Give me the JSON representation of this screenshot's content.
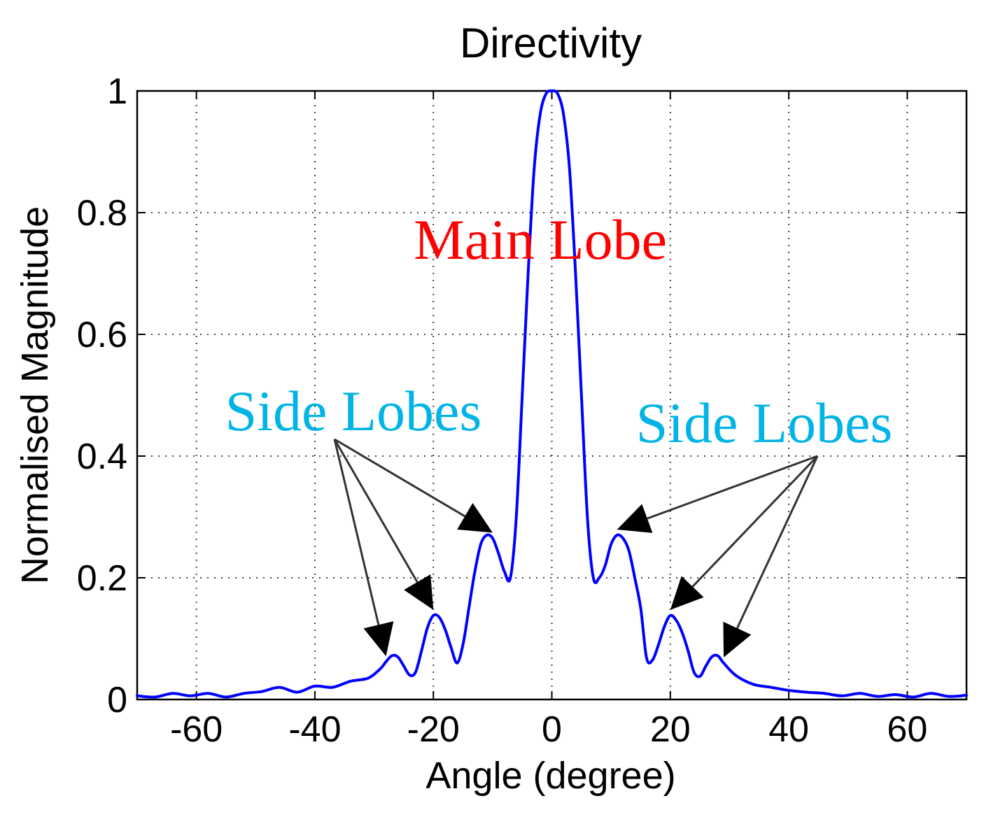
{
  "chart_data": {
    "type": "line",
    "title": "Directivity",
    "xlabel": "Angle (degree)",
    "ylabel": "Normalised Magnitude",
    "xlim": [
      -70,
      70
    ],
    "ylim": [
      0,
      1
    ],
    "xticks": [
      -60,
      -40,
      -20,
      0,
      20,
      40,
      60
    ],
    "xtick_labels": [
      "-60",
      "-40",
      "-20",
      "0",
      "20",
      "40",
      "60"
    ],
    "yticks": [
      0,
      0.2,
      0.4,
      0.6,
      0.8,
      1
    ],
    "ytick_labels": [
      "0",
      "0.2",
      "0.4",
      "0.6",
      "0.8",
      "1"
    ],
    "grid": true,
    "legend": "none",
    "series": [
      {
        "color": "#0000ff",
        "x": [
          -70,
          -67,
          -64,
          -61,
          -58,
          -55,
          -52,
          -49,
          -46,
          -43,
          -40,
          -37,
          -34,
          -31,
          -29,
          -28,
          -27,
          -26,
          -25,
          -24,
          -23,
          -22,
          -21,
          -20,
          -19,
          -18,
          -17,
          -16,
          -15,
          -14,
          -13,
          -12,
          -11,
          -10,
          -9,
          -8,
          -7,
          -6,
          -5,
          -4,
          -3,
          -2,
          -1,
          0,
          1,
          2,
          3,
          4,
          5,
          6,
          7,
          8,
          9,
          10,
          11,
          12,
          13,
          14,
          15,
          16,
          17,
          18,
          19,
          20,
          21,
          22,
          23,
          24,
          25,
          26,
          27,
          28,
          29,
          31,
          34,
          37,
          40,
          43,
          46,
          49,
          52,
          55,
          58,
          61,
          64,
          67,
          70
        ],
        "y": [
          0.006,
          0.004,
          0.01,
          0.006,
          0.01,
          0.004,
          0.01,
          0.013,
          0.02,
          0.012,
          0.022,
          0.02,
          0.03,
          0.035,
          0.05,
          0.062,
          0.072,
          0.07,
          0.055,
          0.04,
          0.045,
          0.08,
          0.118,
          0.138,
          0.135,
          0.115,
          0.085,
          0.06,
          0.09,
          0.15,
          0.21,
          0.255,
          0.27,
          0.265,
          0.24,
          0.21,
          0.2,
          0.3,
          0.5,
          0.7,
          0.87,
          0.96,
          0.995,
          1.0,
          0.995,
          0.96,
          0.87,
          0.7,
          0.5,
          0.3,
          0.2,
          0.2,
          0.22,
          0.255,
          0.27,
          0.265,
          0.245,
          0.2,
          0.15,
          0.068,
          0.065,
          0.09,
          0.12,
          0.138,
          0.13,
          0.11,
          0.08,
          0.045,
          0.038,
          0.055,
          0.07,
          0.072,
          0.06,
          0.04,
          0.025,
          0.02,
          0.015,
          0.012,
          0.01,
          0.006,
          0.01,
          0.005,
          0.008,
          0.004,
          0.01,
          0.005,
          0.007
        ]
      }
    ],
    "annotations": [
      {
        "text": "Main Lobe",
        "color": "#ff0000"
      },
      {
        "text": "Side Lobes",
        "color": "#00b4e6",
        "arrows_to_x": [
          -28,
          -20,
          -10
        ]
      },
      {
        "text": "Side Lobes",
        "color": "#00b4e6",
        "arrows_to_x": [
          11,
          20,
          29
        ]
      }
    ]
  }
}
